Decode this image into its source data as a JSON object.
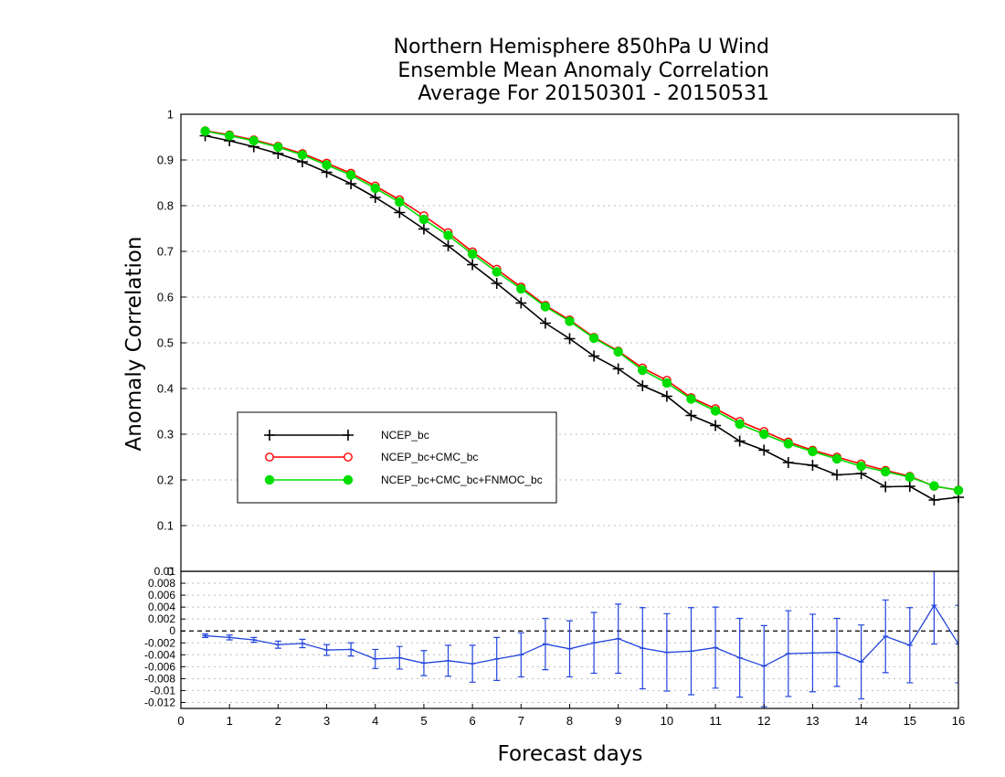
{
  "chart_data": [
    {
      "type": "line",
      "title": "Northern Hemisphere 850hPa U Wind",
      "subtitle": [
        "Ensemble Mean Anomaly Correlation",
        "Average For 20150301 - 20150531"
      ],
      "xlabel": "Forecast days",
      "ylabel": "Anomaly Correlation",
      "xlim": [
        0,
        16
      ],
      "ylim": [
        0,
        1
      ],
      "x_ticks": [
        "0",
        "1",
        "2",
        "3",
        "4",
        "5",
        "6",
        "7",
        "8",
        "9",
        "10",
        "11",
        "12",
        "13",
        "14",
        "15",
        "16"
      ],
      "y_ticks": [
        "0",
        "0.1",
        "0.2",
        "0.3",
        "0.4",
        "0.5",
        "0.6",
        "0.7",
        "0.8",
        "0.9",
        "1"
      ],
      "grid": true,
      "legend_position": "lower-left",
      "x": [
        0.5,
        1,
        1.5,
        2,
        2.5,
        3,
        3.5,
        4,
        4.5,
        5,
        5.5,
        6,
        6.5,
        7,
        7.5,
        8,
        8.5,
        9,
        9.5,
        10,
        10.5,
        11,
        11.5,
        12,
        12.5,
        13,
        13.5,
        14,
        14.5,
        15,
        15.5,
        16
      ],
      "series": [
        {
          "name": "NCEP_bc",
          "color": "#000000",
          "marker": "plus",
          "values": [
            0.953,
            0.942,
            0.929,
            0.914,
            0.896,
            0.873,
            0.848,
            0.818,
            0.785,
            0.749,
            0.712,
            0.671,
            0.63,
            0.587,
            0.543,
            0.509,
            0.471,
            0.443,
            0.406,
            0.383,
            0.341,
            0.319,
            0.285,
            0.265,
            0.238,
            0.232,
            0.211,
            0.214,
            0.185,
            0.186,
            0.156,
            0.162
          ]
        },
        {
          "name": "NCEP_bc+CMC_bc",
          "color": "#ff0000",
          "marker": "open-circle",
          "values": [
            0.964,
            0.955,
            0.944,
            0.93,
            0.914,
            0.893,
            0.871,
            0.843,
            0.813,
            0.778,
            0.741,
            0.699,
            0.661,
            0.622,
            0.582,
            0.55,
            0.512,
            0.482,
            0.445,
            0.418,
            0.38,
            0.356,
            0.328,
            0.306,
            0.283,
            0.265,
            0.25,
            0.235,
            0.221,
            0.208,
            0.186,
            0.178
          ]
        },
        {
          "name": "NCEP_bc+CMC_bc+FNMOC_bc",
          "color": "#00dd00",
          "marker": "filled-circle",
          "values": [
            0.963,
            0.953,
            0.942,
            0.928,
            0.911,
            0.889,
            0.867,
            0.838,
            0.808,
            0.77,
            0.735,
            0.694,
            0.655,
            0.618,
            0.579,
            0.547,
            0.51,
            0.48,
            0.44,
            0.412,
            0.377,
            0.351,
            0.322,
            0.3,
            0.279,
            0.262,
            0.246,
            0.23,
            0.218,
            0.206,
            0.187,
            0.177
          ]
        }
      ]
    },
    {
      "type": "line",
      "xlim": [
        0,
        16
      ],
      "ylim": [
        -0.013,
        0.01
      ],
      "y_ticks": [
        "0.01",
        "0.008",
        "0.006",
        "0.004",
        "0.002",
        "0",
        "-0.002",
        "-0.004",
        "-0.006",
        "-0.008",
        "-0.01",
        "-0.012"
      ],
      "grid": true,
      "reference_line": 0,
      "x": [
        0.5,
        1,
        1.5,
        2,
        2.5,
        3,
        3.5,
        4,
        4.5,
        5,
        5.5,
        6,
        6.5,
        7,
        7.5,
        8,
        8.5,
        9,
        9.5,
        10,
        10.5,
        11,
        11.5,
        12,
        12.5,
        13,
        13.5,
        14,
        14.5,
        15,
        15.5,
        16
      ],
      "series": [
        {
          "color": "#2244dd",
          "error_bars": true,
          "values": [
            -0.0008,
            -0.0011,
            -0.0015,
            -0.0023,
            -0.0021,
            -0.0032,
            -0.0031,
            -0.0047,
            -0.0045,
            -0.0054,
            -0.005,
            -0.0055,
            -0.0047,
            -0.004,
            -0.0022,
            -0.003,
            -0.002,
            -0.0013,
            -0.0029,
            -0.0036,
            -0.0034,
            -0.0028,
            -0.0045,
            -0.0059,
            -0.0038,
            -0.0037,
            -0.0036,
            -0.0052,
            -0.0009,
            -0.0024,
            0.0043,
            -0.0022
          ],
          "err": [
            0.0003,
            0.0004,
            0.0004,
            0.0006,
            0.0007,
            0.0009,
            0.0011,
            0.0016,
            0.0019,
            0.0021,
            0.0026,
            0.0031,
            0.0036,
            0.0037,
            0.0043,
            0.0047,
            0.0051,
            0.0058,
            0.0068,
            0.0065,
            0.0073,
            0.0068,
            0.0066,
            0.0068,
            0.0072,
            0.0065,
            0.0057,
            0.0062,
            0.0061,
            0.0063,
            0.0065,
            0.0065
          ]
        }
      ]
    }
  ]
}
